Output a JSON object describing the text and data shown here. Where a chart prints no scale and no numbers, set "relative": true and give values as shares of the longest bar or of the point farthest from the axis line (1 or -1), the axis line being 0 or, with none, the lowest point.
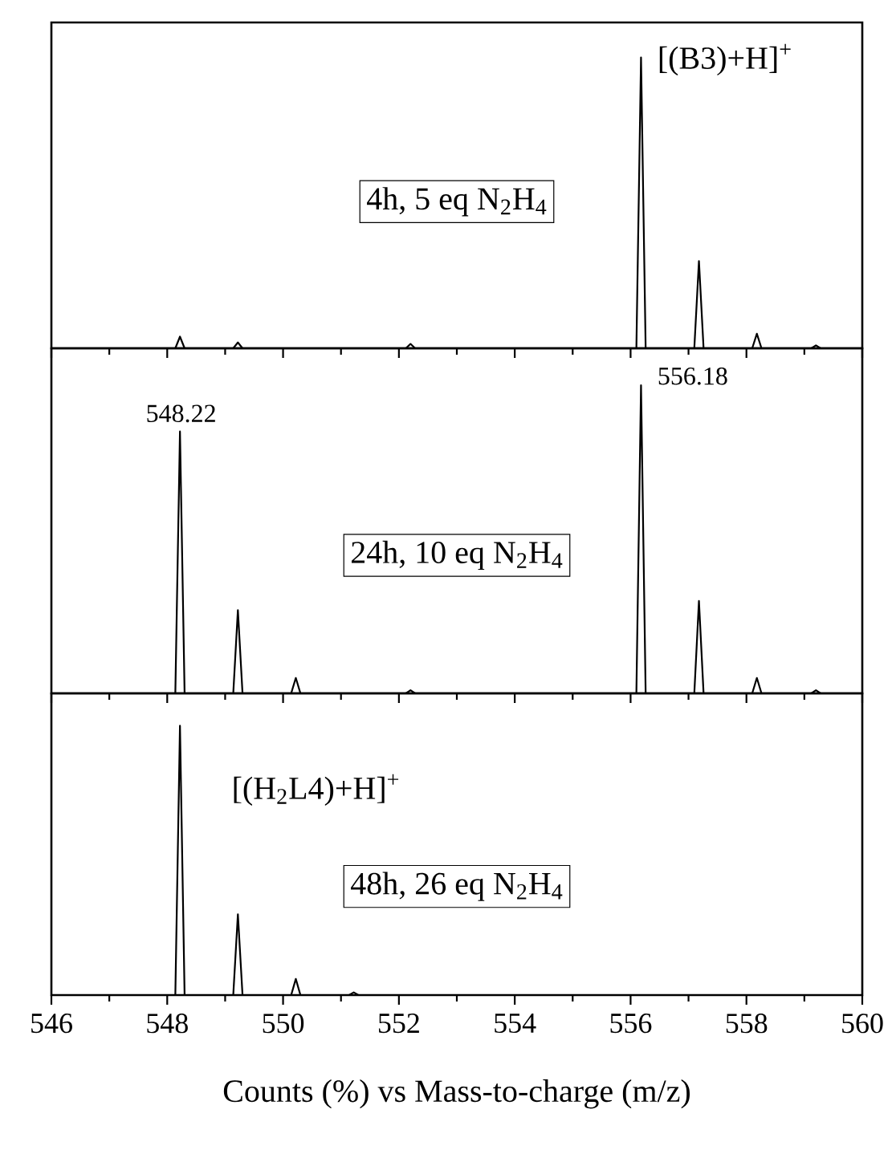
{
  "chart_data": [
    {
      "type": "line",
      "relative": true,
      "xlim": [
        546,
        560
      ],
      "xticks": [
        546,
        548,
        550,
        552,
        554,
        556,
        558,
        560
      ],
      "tick_labels": false,
      "x": [
        546,
        548.14,
        548.22,
        548.3,
        549.14,
        549.22,
        549.3,
        552.12,
        552.2,
        552.28,
        556.1,
        556.18,
        556.26,
        557.1,
        557.18,
        557.26,
        558.1,
        558.18,
        558.26,
        559.12,
        559.2,
        559.28,
        560
      ],
      "series": [
        {
          "color": "#000000",
          "values": [
            0,
            0,
            0.04,
            0,
            0,
            0.02,
            0,
            0,
            0.015,
            0,
            0,
            1,
            0,
            0,
            0.3,
            0,
            0,
            0.05,
            0,
            0,
            0.01,
            0,
            0
          ]
        }
      ],
      "annotations": [
        "[(B3)+H]$^{+}$",
        "4h, 5 eq N$_{2}$H$_{4}$"
      ]
    },
    {
      "type": "line",
      "relative": true,
      "xlim": [
        546,
        560
      ],
      "xticks": [
        546,
        548,
        550,
        552,
        554,
        556,
        558,
        560
      ],
      "tick_labels": false,
      "x": [
        546,
        548.14,
        548.22,
        548.3,
        549.14,
        549.22,
        549.3,
        550.14,
        550.22,
        550.3,
        552.12,
        552.2,
        552.28,
        556.1,
        556.18,
        556.26,
        557.1,
        557.18,
        557.26,
        558.1,
        558.18,
        558.26,
        559.12,
        559.2,
        559.28,
        560
      ],
      "series": [
        {
          "color": "#000000",
          "values": [
            0,
            0,
            0.85,
            0,
            0,
            0.27,
            0,
            0,
            0.05,
            0,
            0,
            0.01,
            0,
            0,
            1,
            0,
            0,
            0.3,
            0,
            0,
            0.05,
            0,
            0,
            0.01,
            0,
            0
          ]
        }
      ],
      "annotations": [
        "548.22",
        "556.18",
        "24h, 10 eq N$_{2}$H$_{4}$"
      ]
    },
    {
      "type": "line",
      "relative": true,
      "xlim": [
        546,
        560
      ],
      "xticks": [
        546,
        548,
        550,
        552,
        554,
        556,
        558,
        560
      ],
      "tick_labels": "x",
      "xlabel": "Counts (%) vs Mass-to-charge (m/z)",
      "x": [
        546,
        548.14,
        548.22,
        548.3,
        549.14,
        549.22,
        549.3,
        550.14,
        550.22,
        550.3,
        551.14,
        551.22,
        551.3,
        560
      ],
      "series": [
        {
          "color": "#000000",
          "values": [
            0,
            0,
            1,
            0,
            0,
            0.3,
            0,
            0,
            0.06,
            0,
            0,
            0.01,
            0,
            0
          ]
        }
      ],
      "annotations": [
        "[(H$_{2}$L4)+H]$^{+}$",
        "48h, 26 eq N$_{2}$H$_{4}$"
      ]
    }
  ]
}
